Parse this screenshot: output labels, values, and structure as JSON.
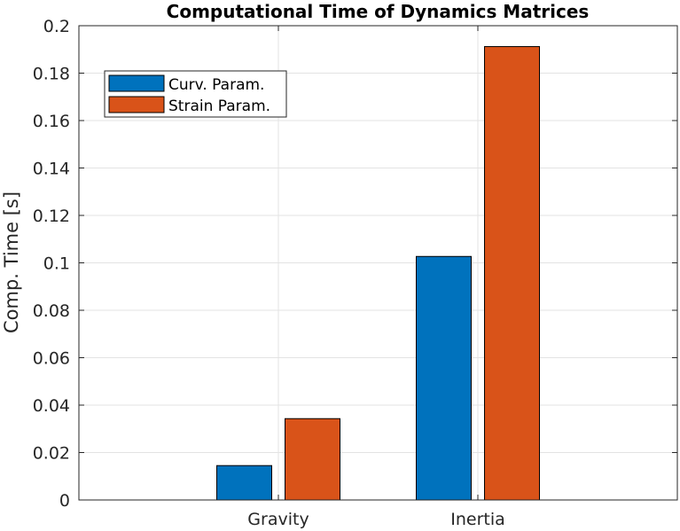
{
  "chart_data": {
    "type": "bar",
    "title": "Computational Time of Dynamics Matrices",
    "xlabel": "",
    "ylabel": "Comp. Time [s]",
    "categories": [
      "Gravity",
      "Inertia"
    ],
    "series": [
      {
        "name": "Curv. Param.",
        "color": "#0072BD",
        "values": [
          0.0145,
          0.1027
        ]
      },
      {
        "name": "Strain Param.",
        "color": "#D95319",
        "values": [
          0.0343,
          0.1912
        ]
      }
    ],
    "ylim": [
      0,
      0.2
    ],
    "yticks": [
      0,
      0.02,
      0.04,
      0.06,
      0.08,
      0.1,
      0.12,
      0.14,
      0.16,
      0.18,
      0.2
    ],
    "ytick_labels": [
      "0",
      "0.02",
      "0.04",
      "0.06",
      "0.08",
      "0.1",
      "0.12",
      "0.14",
      "0.16",
      "0.18",
      "0.2"
    ],
    "grid": true,
    "legend_position": "top-left"
  }
}
